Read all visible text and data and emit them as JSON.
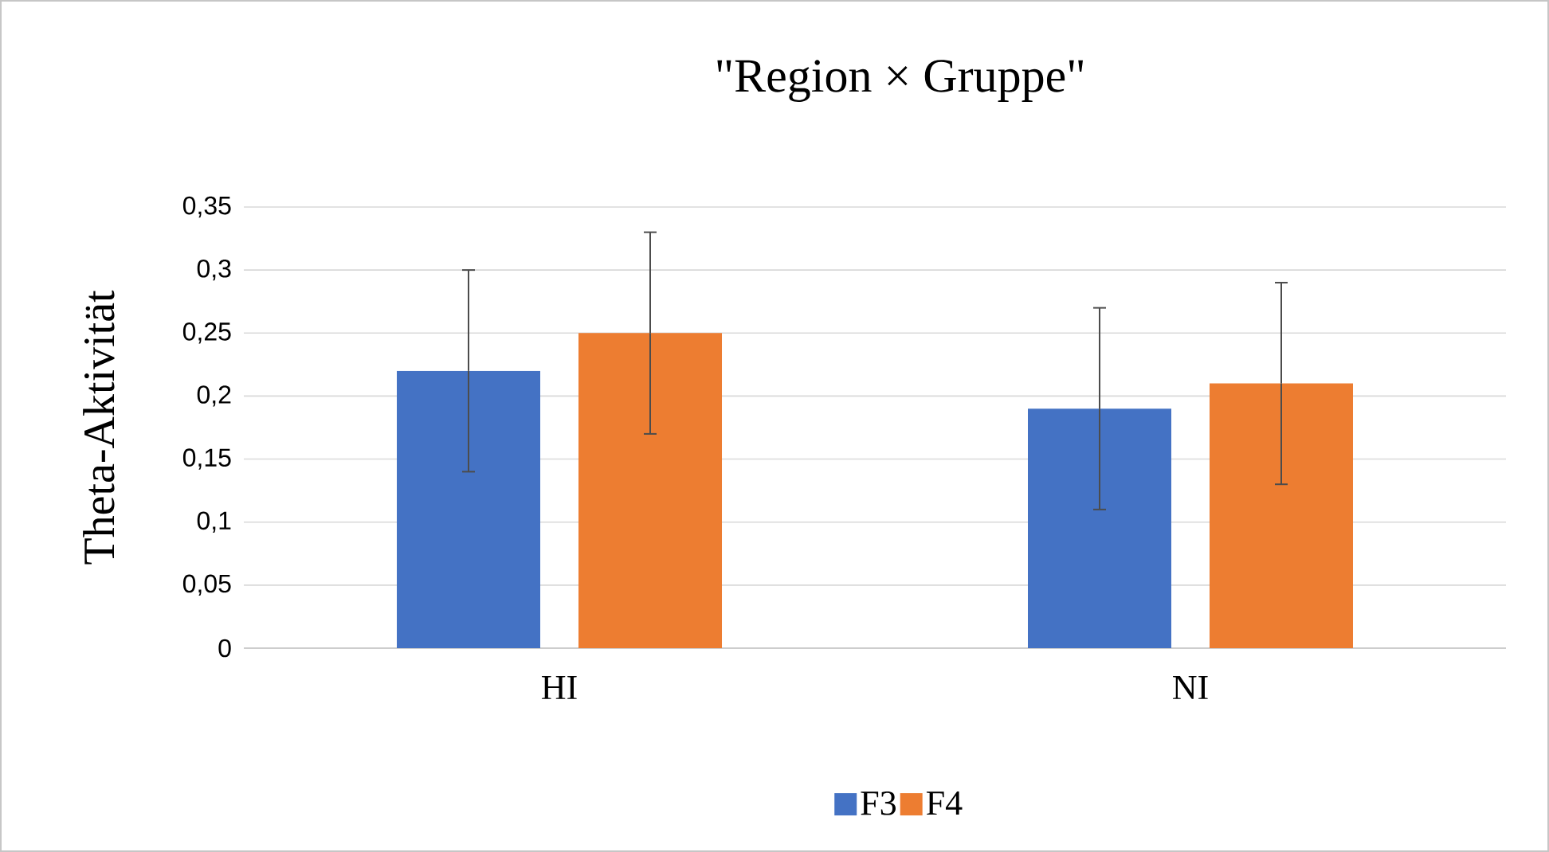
{
  "chart_data": {
    "type": "bar",
    "title": "\"Region × Gruppe\"",
    "ylabel": "Theta-Aktivität",
    "categories": [
      "HI",
      "NI"
    ],
    "series": [
      {
        "name": "F3",
        "color": "#4472c4",
        "values": [
          0.22,
          0.19
        ],
        "errors": [
          0.08,
          0.08
        ]
      },
      {
        "name": "F4",
        "color": "#ed7d31",
        "values": [
          0.25,
          0.21
        ],
        "errors": [
          0.08,
          0.08
        ]
      }
    ],
    "ylim": [
      0,
      0.35
    ],
    "yticks": [
      0,
      {
        "value": 0.05,
        "label": "0,05"
      },
      {
        "value": 0.1,
        "label": "0,1"
      },
      {
        "value": 0.15,
        "label": "0,15"
      },
      {
        "value": 0.2,
        "label": "0,2"
      },
      {
        "value": 0.25,
        "label": "0,25"
      },
      {
        "value": 0.3,
        "label": "0,3"
      },
      {
        "value": 0.35,
        "label": "0,35"
      }
    ],
    "grid": "y",
    "legend": "bottom"
  }
}
